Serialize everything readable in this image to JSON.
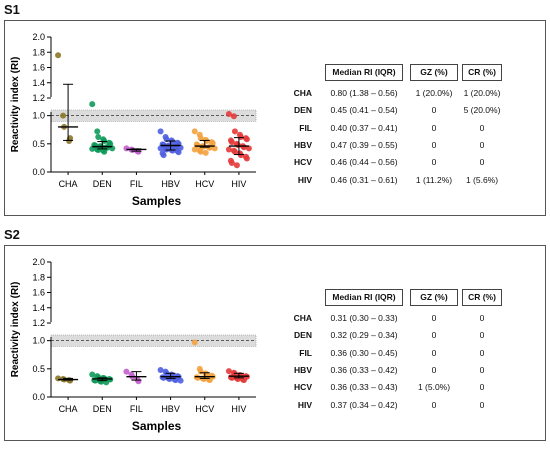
{
  "chart_data": [
    {
      "type": "scatter",
      "panel": "S1",
      "ylabel": "Reactivity index (RI)",
      "xlabel": "Samples",
      "ylim": [
        0,
        2.0
      ],
      "yticks": [
        "0.0",
        "0.5",
        "1.0",
        "1.2",
        "1.4",
        "1.6",
        "1.8",
        "2.0"
      ],
      "axis_break": "between 1.1 and 1.2",
      "cutoff_line": 1.0,
      "grey_zone": [
        0.9,
        1.1
      ],
      "categories": [
        "CHA",
        "DEN",
        "FIL",
        "HBV",
        "HCV",
        "HIV"
      ],
      "colors": [
        "#8b7528",
        "#109a5a",
        "#c25fce",
        "#4f5fe0",
        "#f4a23e",
        "#e43a3a"
      ],
      "medians": [
        0.8,
        0.45,
        0.4,
        0.47,
        0.46,
        0.46
      ],
      "q1": [
        0.56,
        0.41,
        0.37,
        0.39,
        0.44,
        0.31
      ],
      "q3": [
        1.38,
        0.54,
        0.41,
        0.55,
        0.56,
        0.61
      ],
      "points": [
        [
          1.76,
          1.0,
          0.8,
          0.55,
          0.6
        ],
        [
          1.12,
          0.72,
          0.62,
          0.58,
          0.55,
          0.52,
          0.5,
          0.48,
          0.47,
          0.46,
          0.45,
          0.44,
          0.43,
          0.42,
          0.41,
          0.4,
          0.39,
          0.38,
          0.36
        ],
        [
          0.42,
          0.4,
          0.39,
          0.37,
          0.36
        ],
        [
          0.72,
          0.62,
          0.58,
          0.56,
          0.54,
          0.52,
          0.5,
          0.49,
          0.48,
          0.47,
          0.46,
          0.45,
          0.44,
          0.43,
          0.42,
          0.41,
          0.4,
          0.39,
          0.38,
          0.37,
          0.35,
          0.33,
          0.3
        ],
        [
          0.72,
          0.66,
          0.6,
          0.57,
          0.55,
          0.53,
          0.51,
          0.49,
          0.47,
          0.46,
          0.45,
          0.44,
          0.43,
          0.42,
          0.4,
          0.38,
          0.36,
          0.34
        ],
        [
          1.03,
          0.99,
          0.72,
          0.66,
          0.62,
          0.6,
          0.58,
          0.56,
          0.53,
          0.5,
          0.48,
          0.46,
          0.44,
          0.42,
          0.4,
          0.38,
          0.36,
          0.33,
          0.3,
          0.27,
          0.24,
          0.2,
          0.16,
          0.12
        ]
      ]
    },
    {
      "type": "scatter",
      "panel": "S2",
      "ylabel": "Reactivity index (RI)",
      "xlabel": "Samples",
      "ylim": [
        0,
        2.0
      ],
      "yticks": [
        "0.0",
        "0.5",
        "1.0",
        "1.2",
        "1.4",
        "1.6",
        "1.8",
        "2.0"
      ],
      "axis_break": "between 1.1 and 1.2",
      "cutoff_line": 1.0,
      "grey_zone": [
        0.9,
        1.1
      ],
      "categories": [
        "CHA",
        "DEN",
        "FIL",
        "HBV",
        "HCV",
        "HIV"
      ],
      "colors": [
        "#8b7528",
        "#109a5a",
        "#c25fce",
        "#4f5fe0",
        "#f4a23e",
        "#e43a3a"
      ],
      "medians": [
        0.31,
        0.32,
        0.36,
        0.36,
        0.36,
        0.37
      ],
      "q1": [
        0.3,
        0.29,
        0.3,
        0.33,
        0.33,
        0.34
      ],
      "q3": [
        0.33,
        0.34,
        0.45,
        0.42,
        0.43,
        0.42
      ],
      "points": [
        [
          0.33,
          0.32,
          0.31,
          0.3,
          0.29
        ],
        [
          0.4,
          0.37,
          0.35,
          0.34,
          0.33,
          0.32,
          0.31,
          0.3,
          0.29,
          0.28,
          0.27,
          0.26
        ],
        [
          0.45,
          0.4,
          0.36,
          0.31,
          0.28
        ],
        [
          0.48,
          0.45,
          0.42,
          0.4,
          0.38,
          0.37,
          0.36,
          0.35,
          0.34,
          0.33,
          0.32,
          0.31,
          0.3,
          0.29
        ],
        [
          0.97,
          0.5,
          0.45,
          0.42,
          0.4,
          0.38,
          0.36,
          0.35,
          0.34,
          0.33,
          0.32,
          0.31,
          0.3
        ],
        [
          0.46,
          0.43,
          0.41,
          0.39,
          0.38,
          0.37,
          0.36,
          0.35,
          0.34,
          0.33,
          0.32,
          0.31,
          0.3
        ]
      ]
    }
  ],
  "tables": [
    {
      "headers": [
        "Median RI (IQR)",
        "GZ (%)",
        "CR (%)"
      ],
      "rows": [
        {
          "label": "CHA",
          "median": "0.80 (1.38 – 0.56)",
          "gz": "1 (20.0%)",
          "cr": "1 (20.0%)"
        },
        {
          "label": "DEN",
          "median": "0.45 (0.41 – 0.54)",
          "gz": "0",
          "cr": "5 (20.0%)"
        },
        {
          "label": "FIL",
          "median": "0.40 (0.37 – 0.41)",
          "gz": "0",
          "cr": "0"
        },
        {
          "label": "HBV",
          "median": "0.47 (0.39 – 0.55)",
          "gz": "0",
          "cr": "0"
        },
        {
          "label": "HCV",
          "median": "0.46 (0.44 – 0.56)",
          "gz": "0",
          "cr": "0"
        },
        {
          "label": "HIV",
          "median": "0.46 (0.31 – 0.61)",
          "gz": "1 (11.2%)",
          "cr": "1 (5.6%)"
        }
      ]
    },
    {
      "headers": [
        "Median RI (IQR)",
        "GZ (%)",
        "CR (%)"
      ],
      "rows": [
        {
          "label": "CHA",
          "median": "0.31 (0.30 – 0.33)",
          "gz": "0",
          "cr": "0"
        },
        {
          "label": "DEN",
          "median": "0.32 (0.29 – 0.34)",
          "gz": "0",
          "cr": "0"
        },
        {
          "label": "FIL",
          "median": "0.36 (0.30 – 0.45)",
          "gz": "0",
          "cr": "0"
        },
        {
          "label": "HBV",
          "median": "0.36 (0.33 – 0.42)",
          "gz": "0",
          "cr": "0"
        },
        {
          "label": "HCV",
          "median": "0.36 (0.33 – 0.43)",
          "gz": "1 (5.0%)",
          "cr": "0"
        },
        {
          "label": "HIV",
          "median": "0.37 (0.34 – 0.42)",
          "gz": "0",
          "cr": "0"
        }
      ]
    }
  ]
}
